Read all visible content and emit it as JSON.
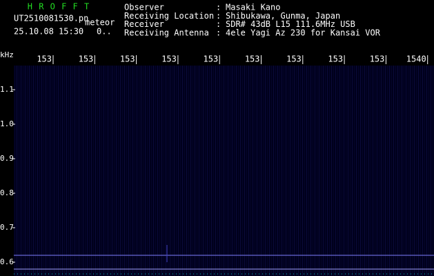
{
  "header": {
    "title": "H R O F F T",
    "file": "UT2510081530.pn",
    "mode": "meteor",
    "datetime": "25.10.08 15:30",
    "counter": "0..",
    "separator": ":",
    "fields": [
      {
        "label": "Observer",
        "value": "Masaki Kano"
      },
      {
        "label": "Receiving Location",
        "value": "Shibukawa, Gunma, Japan"
      },
      {
        "label": "Receiver",
        "value": "SDR# 43dB L15 111.6MHz USB"
      },
      {
        "label": "Receiving Antenna",
        "value": "4ele Yagi Az 230 for Kansai VOR"
      }
    ]
  },
  "axes": {
    "x_labels": [
      "153",
      "153",
      "153",
      "153",
      "153",
      "153",
      "153",
      "153",
      "153",
      "1540"
    ],
    "y_unit": "kHz",
    "y_labels": [
      "1.1",
      "1.0",
      "0.9",
      "0.8",
      "0.7",
      "0.6"
    ]
  }
}
